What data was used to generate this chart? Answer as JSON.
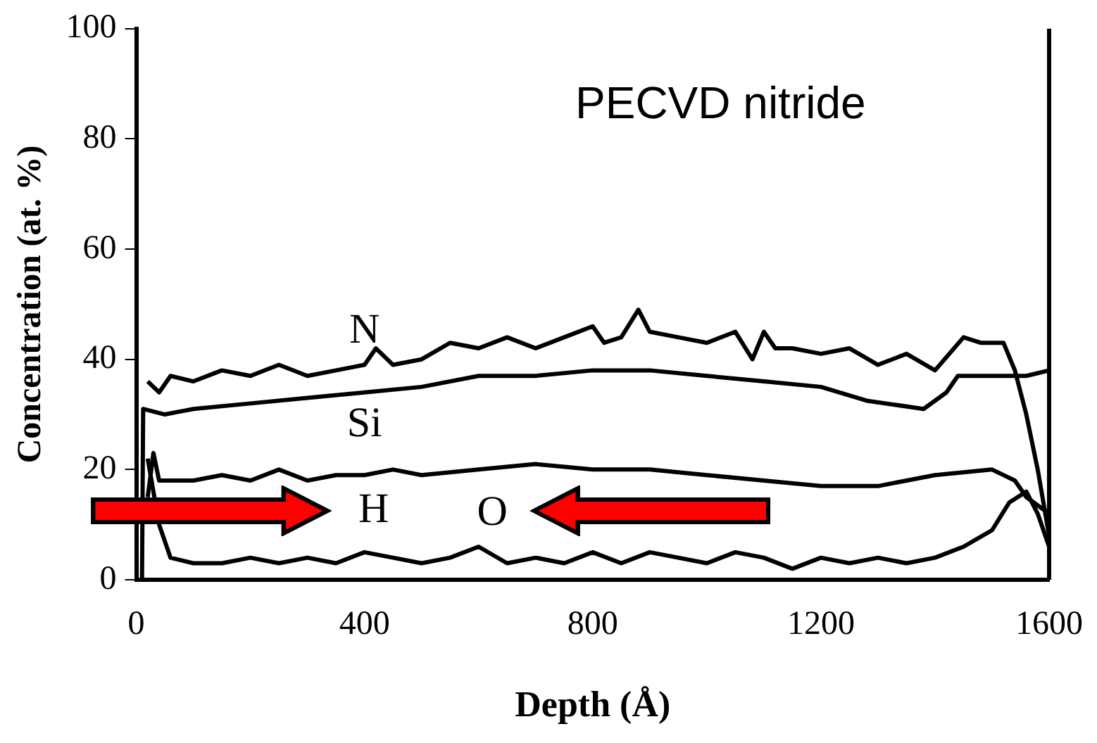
{
  "chart_data": {
    "type": "line",
    "xlabel": "Depth (Å)",
    "ylabel": "Concentration (at. %)",
    "annotations": [
      "PECVD nitride"
    ],
    "xlim": [
      0,
      1600
    ],
    "ylim": [
      0,
      100
    ],
    "xticks": [
      0,
      400,
      800,
      1200,
      1600
    ],
    "yticks": [
      0,
      20,
      40,
      60,
      80,
      100
    ],
    "grid": false,
    "legend": false,
    "marker": "none",
    "line_style": "solid",
    "series": [
      {
        "name": "N",
        "color": "#000000",
        "x": [
          20,
          40,
          60,
          100,
          150,
          200,
          250,
          300,
          350,
          400,
          420,
          450,
          500,
          550,
          600,
          650,
          700,
          750,
          800,
          820,
          850,
          880,
          900,
          950,
          1000,
          1050,
          1080,
          1100,
          1120,
          1150,
          1200,
          1250,
          1300,
          1350,
          1400,
          1450,
          1480,
          1520,
          1540,
          1560,
          1580,
          1600
        ],
        "values": [
          36,
          34,
          37,
          36,
          38,
          37,
          39,
          37,
          38,
          39,
          42,
          39,
          40,
          43,
          42,
          44,
          42,
          44,
          46,
          43,
          44,
          49,
          45,
          44,
          43,
          45,
          40,
          45,
          42,
          42,
          41,
          42,
          39,
          41,
          38,
          44,
          43,
          43,
          38,
          30,
          20,
          8
        ]
      },
      {
        "name": "Si",
        "color": "#000000",
        "x": [
          10,
          12,
          50,
          100,
          200,
          300,
          400,
          500,
          600,
          700,
          800,
          900,
          1000,
          1100,
          1200,
          1280,
          1380,
          1420,
          1440,
          1480,
          1520,
          1560,
          1600
        ],
        "values": [
          0,
          31,
          30,
          31,
          32,
          33,
          34,
          35,
          37,
          37,
          38,
          38,
          37,
          36,
          35,
          32.5,
          31,
          34,
          37,
          37,
          37,
          37,
          38
        ]
      },
      {
        "name": "H",
        "color": "#000000",
        "x": [
          20,
          30,
          40,
          60,
          100,
          150,
          200,
          250,
          300,
          350,
          400,
          450,
          500,
          600,
          700,
          800,
          900,
          1000,
          1100,
          1200,
          1300,
          1400,
          1500,
          1540,
          1560,
          1600
        ],
        "values": [
          15,
          23,
          18,
          18,
          18,
          19,
          18,
          20,
          18,
          19,
          19,
          20,
          19,
          20,
          21,
          20,
          20,
          19,
          18,
          17,
          17,
          19,
          20,
          18,
          15,
          12
        ]
      },
      {
        "name": "O",
        "color": "#000000",
        "x": [
          20,
          40,
          60,
          100,
          150,
          200,
          250,
          300,
          350,
          400,
          450,
          500,
          550,
          600,
          650,
          700,
          750,
          800,
          850,
          900,
          950,
          1000,
          1050,
          1100,
          1150,
          1200,
          1250,
          1300,
          1350,
          1400,
          1450,
          1500,
          1530,
          1560,
          1580,
          1600
        ],
        "values": [
          22,
          10,
          4,
          3,
          3,
          4,
          3,
          4,
          3,
          5,
          4,
          3,
          4,
          6,
          3,
          4,
          3,
          5,
          3,
          5,
          4,
          3,
          5,
          4,
          2,
          4,
          3,
          4,
          3,
          4,
          6,
          9,
          14,
          16,
          12,
          6
        ]
      }
    ]
  }
}
